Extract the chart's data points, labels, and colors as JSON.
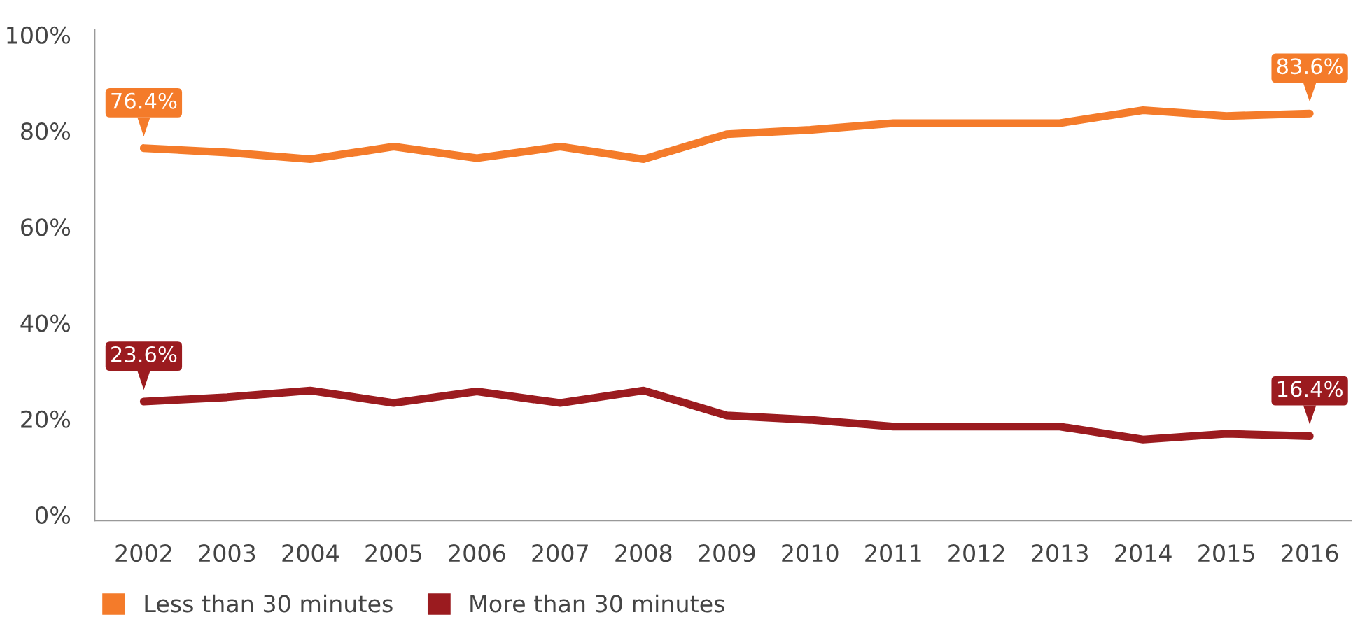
{
  "chart_data": {
    "type": "line",
    "categories": [
      "2002",
      "2003",
      "2004",
      "2005",
      "2006",
      "2007",
      "2008",
      "2009",
      "2010",
      "2011",
      "2012",
      "2013",
      "2014",
      "2015",
      "2016"
    ],
    "series": [
      {
        "name": "Less than 30 minutes",
        "color": "#f47b2a",
        "values": [
          76.4,
          75.5,
          74.1,
          76.7,
          74.3,
          76.7,
          74.1,
          79.3,
          80.2,
          81.6,
          81.6,
          81.6,
          84.3,
          83.1,
          83.6
        ],
        "value_labels": [
          "76.4%",
          null,
          null,
          null,
          null,
          null,
          null,
          null,
          null,
          null,
          null,
          null,
          null,
          null,
          "83.6%"
        ]
      },
      {
        "name": "More than 30 minutes",
        "color": "#9b1b1f",
        "values": [
          23.6,
          24.5,
          25.9,
          23.3,
          25.7,
          23.3,
          25.9,
          20.7,
          19.8,
          18.4,
          18.4,
          18.4,
          15.7,
          16.9,
          16.4
        ],
        "value_labels": [
          "23.6%",
          null,
          null,
          null,
          null,
          null,
          null,
          null,
          null,
          null,
          null,
          null,
          null,
          null,
          "16.4%"
        ]
      }
    ],
    "ylim": [
      -1.2,
      101
    ],
    "yticks": [
      {
        "value": 0,
        "label": "0%"
      },
      {
        "value": 20,
        "label": "20%"
      },
      {
        "value": 40,
        "label": "40%"
      },
      {
        "value": 60,
        "label": "60%"
      },
      {
        "value": 80,
        "label": "80%"
      },
      {
        "value": 100,
        "label": "100%"
      }
    ],
    "grid": false,
    "legend": "bottom left",
    "marker": "none",
    "line_style": "solid"
  }
}
